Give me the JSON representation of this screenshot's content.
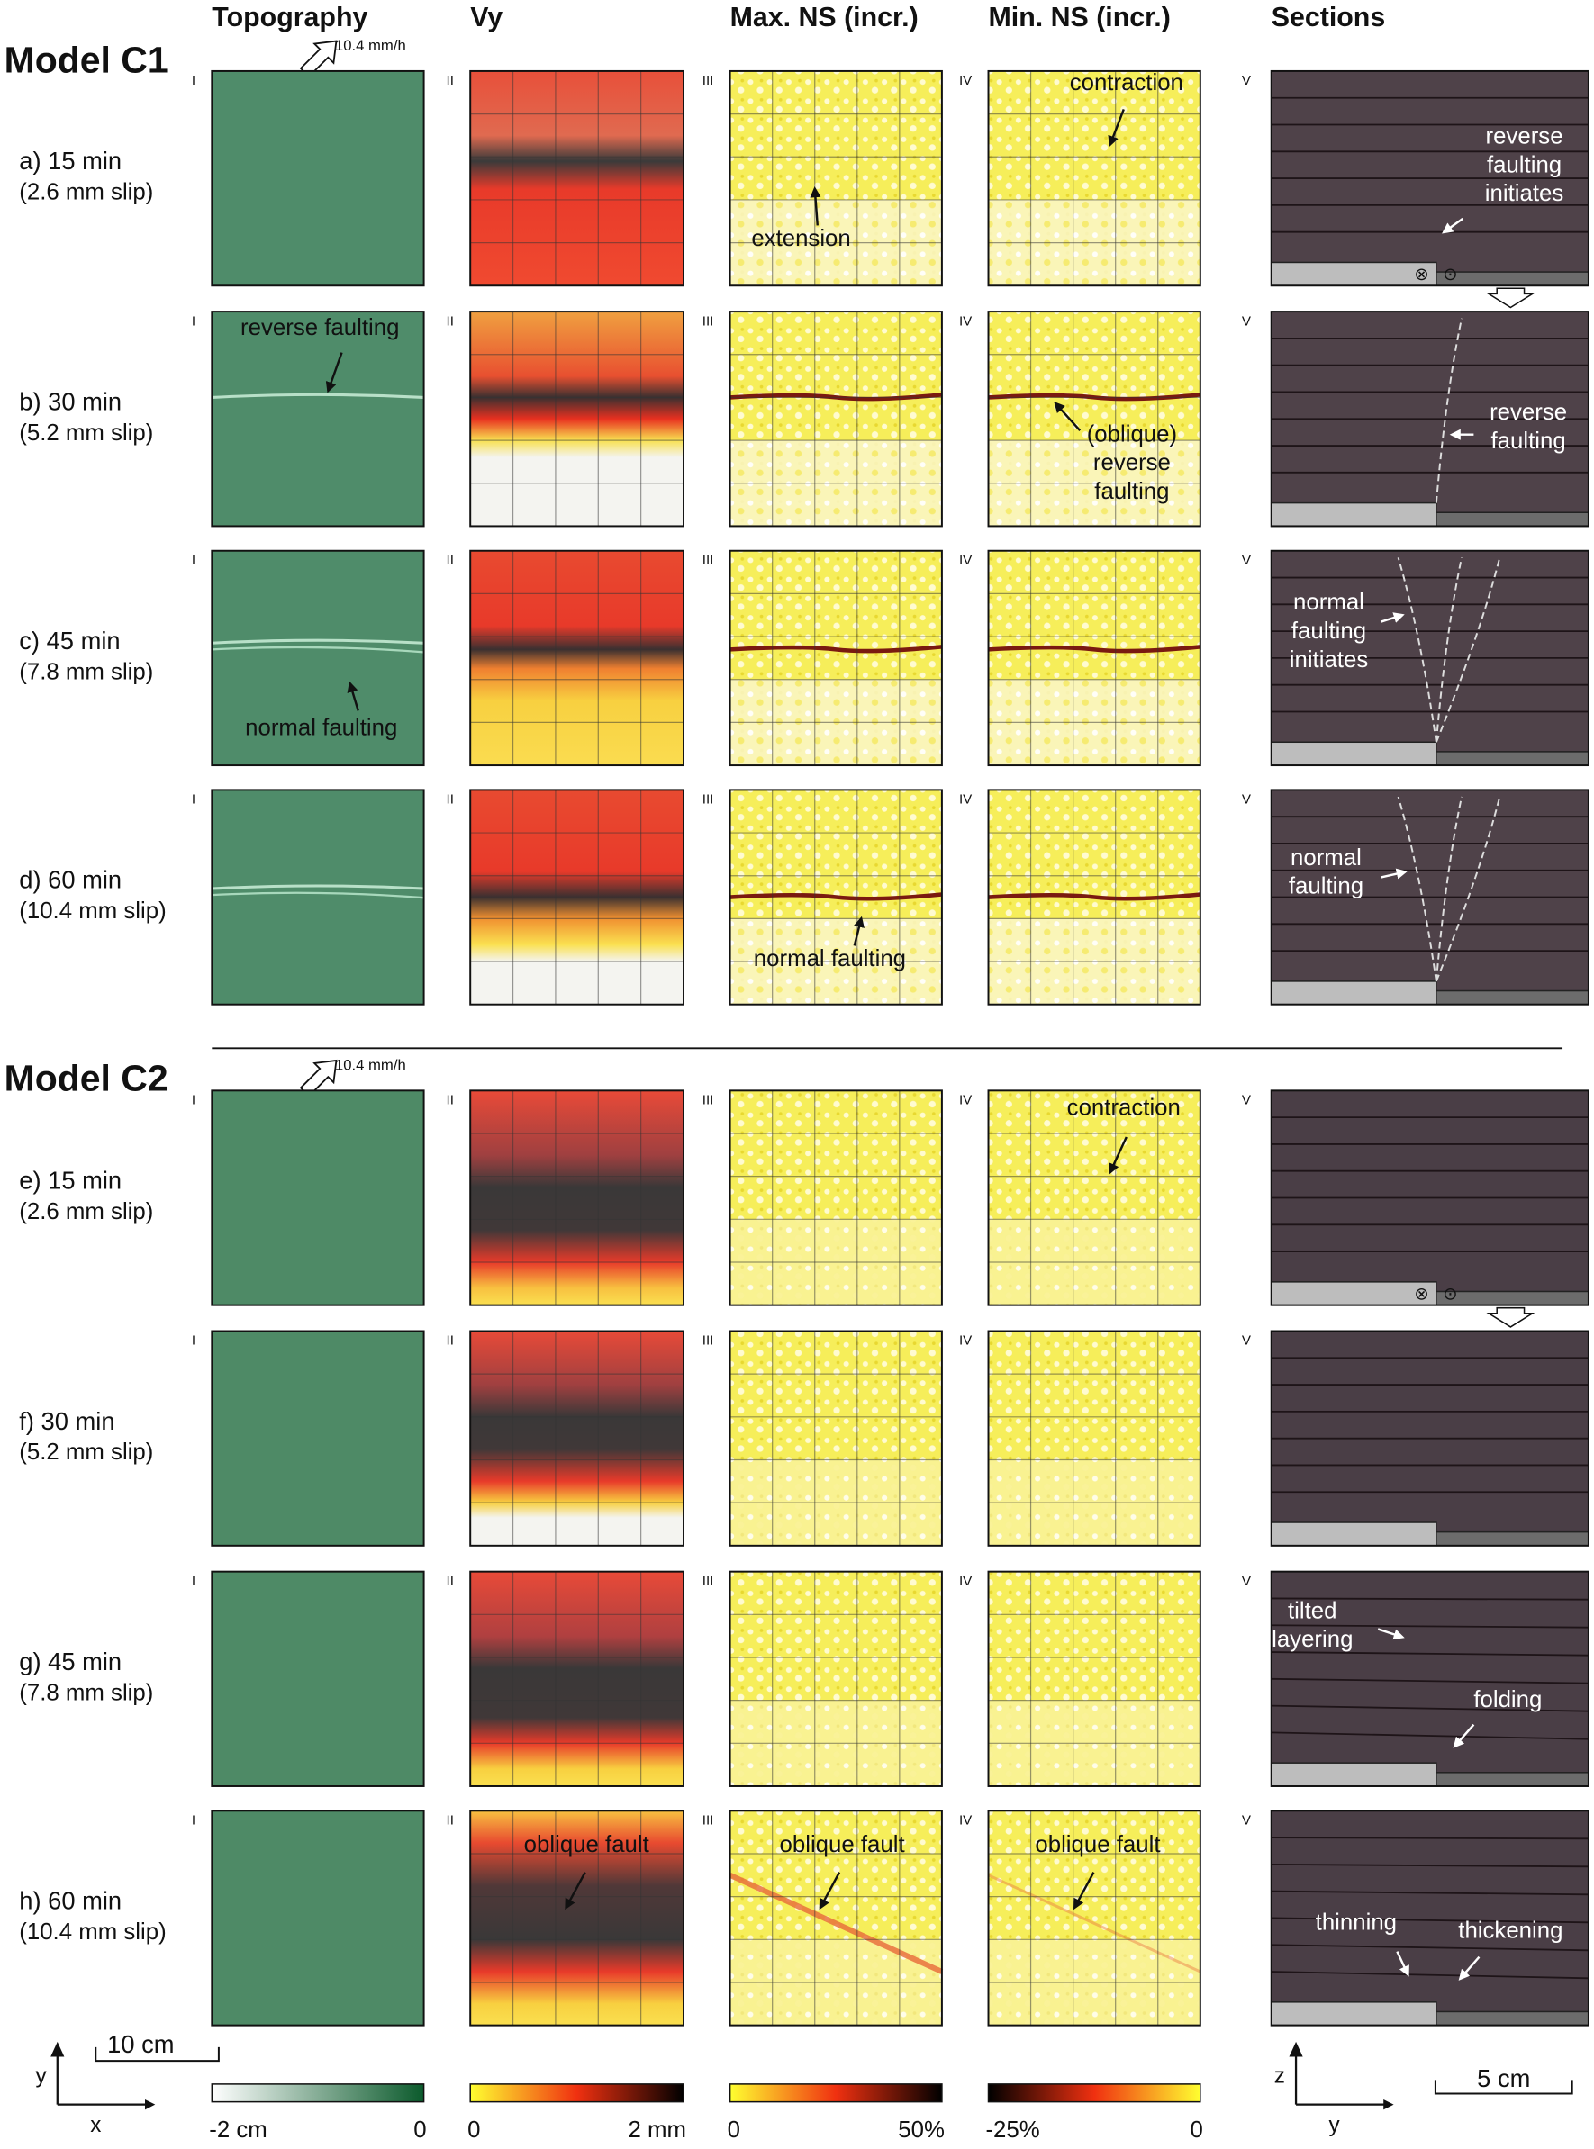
{
  "columns": [
    "Topography",
    "Vy",
    "Max. NS (incr.)",
    "Min. NS (incr.)",
    "Sections"
  ],
  "panel_numerals": [
    "I",
    "II",
    "III",
    "IV",
    "V"
  ],
  "models": [
    {
      "title": "Model C1",
      "velocity": "10.4 mm/h",
      "rows": [
        {
          "time": "a) 15 min",
          "slip": "(2.6 mm slip)",
          "annotations": [
            [],
            [],
            [
              [
                "extension"
              ]
            ],
            [
              [
                "contraction"
              ]
            ],
            [
              [
                "reverse",
                "faulting",
                "initiates"
              ]
            ]
          ]
        },
        {
          "time": "b) 30 min",
          "slip": "(5.2 mm slip)",
          "annotations": [
            [
              [
                "reverse faulting"
              ]
            ],
            [],
            [],
            [
              [
                "(oblique)",
                "reverse",
                "faulting"
              ]
            ],
            [
              [
                "reverse",
                "faulting"
              ]
            ]
          ]
        },
        {
          "time": "c) 45 min",
          "slip": "(7.8 mm slip)",
          "annotations": [
            [
              [
                "normal faulting"
              ]
            ],
            [],
            [],
            [],
            [
              [
                "normal",
                "faulting",
                "initiates"
              ]
            ]
          ]
        },
        {
          "time": "d) 60 min",
          "slip": "(10.4 mm slip)",
          "annotations": [
            [],
            [],
            [
              [
                "normal faulting"
              ]
            ],
            [],
            [
              [
                "normal",
                "faulting"
              ]
            ]
          ]
        }
      ]
    },
    {
      "title": "Model C2",
      "velocity": "10.4 mm/h",
      "rows": [
        {
          "time": "e) 15 min",
          "slip": "(2.6 mm slip)",
          "annotations": [
            [],
            [],
            [],
            [
              [
                "contraction"
              ]
            ],
            []
          ]
        },
        {
          "time": "f) 30 min",
          "slip": "(5.2 mm slip)",
          "annotations": [
            [],
            [],
            [],
            [],
            []
          ]
        },
        {
          "time": "g) 45 min",
          "slip": "(7.8 mm slip)",
          "annotations": [
            [],
            [],
            [],
            [],
            [
              [
                "tilted",
                "layering"
              ],
              [
                "folding"
              ]
            ]
          ]
        },
        {
          "time": "h) 60 min",
          "slip": "(10.4 mm slip)",
          "annotations": [
            [],
            [
              [
                "oblique fault"
              ]
            ],
            [
              [
                "oblique fault"
              ]
            ],
            [
              [
                "oblique fault"
              ]
            ],
            [
              [
                "thinning"
              ],
              [
                "thickening"
              ]
            ]
          ]
        }
      ]
    }
  ],
  "scale_bars": [
    "10 cm",
    "5 cm"
  ],
  "axes": {
    "map": [
      "y",
      "x"
    ],
    "section": [
      "z",
      "y"
    ]
  },
  "colorbars": [
    [
      "-2 cm",
      "0"
    ],
    [
      "0",
      "2 mm"
    ],
    [
      "0",
      "50%"
    ],
    [
      "-25%",
      "0"
    ]
  ]
}
